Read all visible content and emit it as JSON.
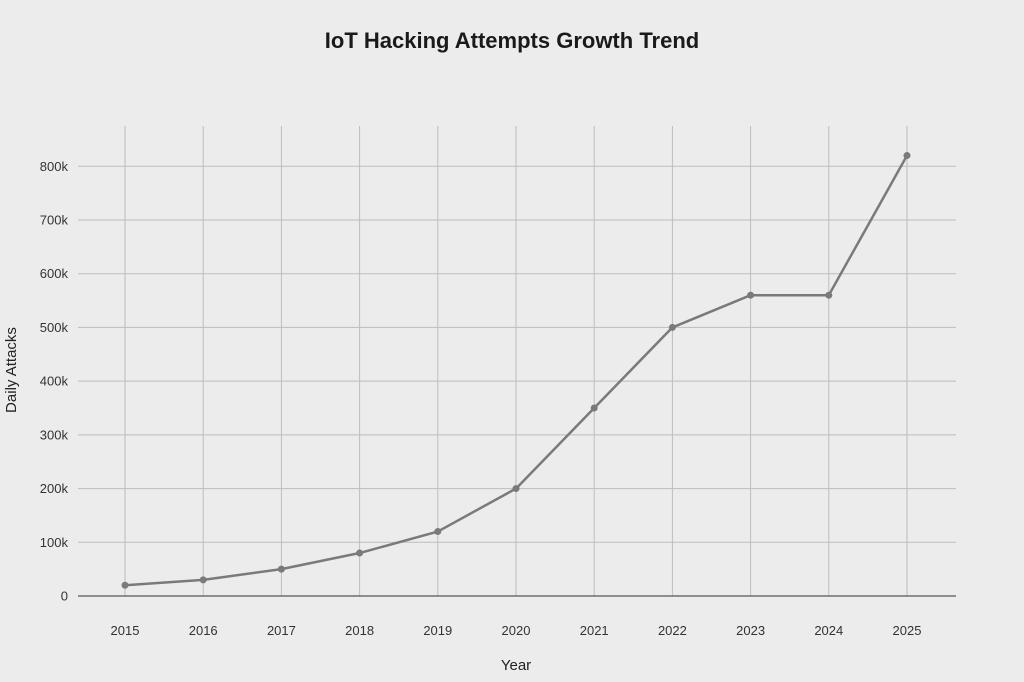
{
  "chart_data": {
    "type": "line",
    "title": "IoT Hacking Attempts Growth Trend",
    "xlabel": "Year",
    "ylabel": "Daily Attacks",
    "x": [
      "2015",
      "2016",
      "2017",
      "2018",
      "2019",
      "2020",
      "2021",
      "2022",
      "2023",
      "2024",
      "2025"
    ],
    "series": [
      {
        "values": [
          20000,
          30000,
          50000,
          80000,
          120000,
          200000,
          350000,
          500000,
          560000,
          560000,
          820000
        ]
      }
    ],
    "ylim": [
      0,
      875000
    ],
    "yticks": [
      0,
      100000,
      200000,
      300000,
      400000,
      500000,
      600000,
      700000,
      800000
    ],
    "ytick_labels": [
      "0",
      "100k",
      "200k",
      "300k",
      "400k",
      "500k",
      "600k",
      "700k",
      "800k"
    ],
    "grid": true,
    "legend": "none",
    "colors": {
      "line": "#7a7a7a",
      "grid": "#bdbdbd",
      "axis": "#555555"
    }
  }
}
